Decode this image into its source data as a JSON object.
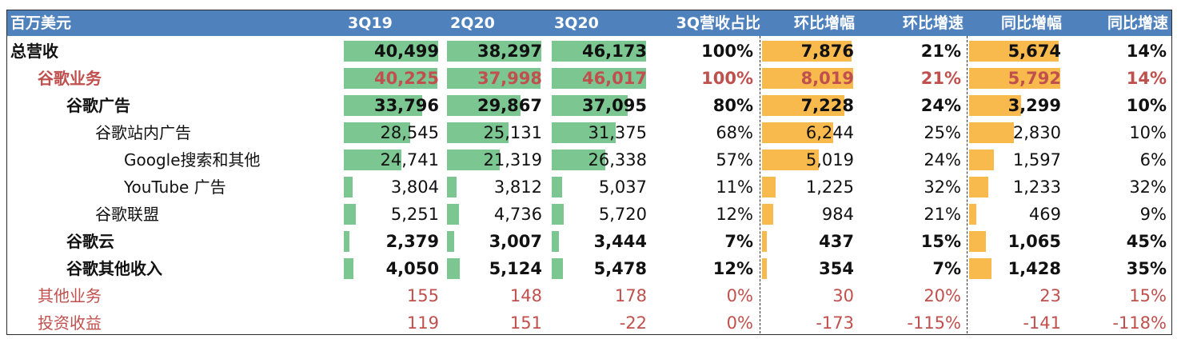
{
  "header": {
    "unit": "百万美元",
    "columns": [
      "3Q19",
      "2Q20",
      "3Q20",
      "3Q营收占比",
      "环比增幅",
      "环比增速",
      "同比增幅",
      "同比增速"
    ]
  },
  "rows": [
    {
      "label": "总营收",
      "values": [
        "40,499",
        "38,297",
        "46,173",
        "100%",
        "7,876",
        "21%",
        "5,674",
        "14%"
      ]
    },
    {
      "label": "谷歌业务",
      "values": [
        "40,225",
        "37,998",
        "46,017",
        "100%",
        "8,019",
        "21%",
        "5,792",
        "14%"
      ]
    },
    {
      "label": "谷歌广告",
      "values": [
        "33,796",
        "29,867",
        "37,095",
        "80%",
        "7,228",
        "24%",
        "3,299",
        "10%"
      ]
    },
    {
      "label": "谷歌站内广告",
      "values": [
        "28,545",
        "25,131",
        "31,375",
        "68%",
        "6,244",
        "25%",
        "2,830",
        "10%"
      ]
    },
    {
      "label": "Google搜索和其他",
      "values": [
        "24,741",
        "21,319",
        "26,338",
        "57%",
        "5,019",
        "24%",
        "1,597",
        "6%"
      ]
    },
    {
      "label": "YouTube 广告",
      "values": [
        "3,804",
        "3,812",
        "5,037",
        "11%",
        "1,225",
        "32%",
        "1,233",
        "32%"
      ]
    },
    {
      "label": "谷歌联盟",
      "values": [
        "5,251",
        "4,736",
        "5,720",
        "12%",
        "984",
        "21%",
        "469",
        "9%"
      ]
    },
    {
      "label": "谷歌云",
      "values": [
        "2,379",
        "3,007",
        "3,444",
        "7%",
        "437",
        "15%",
        "1,065",
        "45%"
      ]
    },
    {
      "label": "谷歌其他收入",
      "values": [
        "4,050",
        "5,124",
        "5,478",
        "12%",
        "354",
        "7%",
        "1,428",
        "35%"
      ]
    },
    {
      "label": "其他业务",
      "values": [
        "155",
        "148",
        "178",
        "0%",
        "30",
        "20%",
        "23",
        "15%"
      ]
    },
    {
      "label": "投资收益",
      "values": [
        "119",
        "151",
        "-22",
        "0%",
        "-173",
        "-115%",
        "-141",
        "-118%"
      ]
    }
  ],
  "colors": {
    "header_bg": "#4f81bd",
    "header_text": "#ffffff",
    "green_bar": "#7cc691",
    "orange_bar": "#f8b94d",
    "red_text": "#c0504d"
  }
}
